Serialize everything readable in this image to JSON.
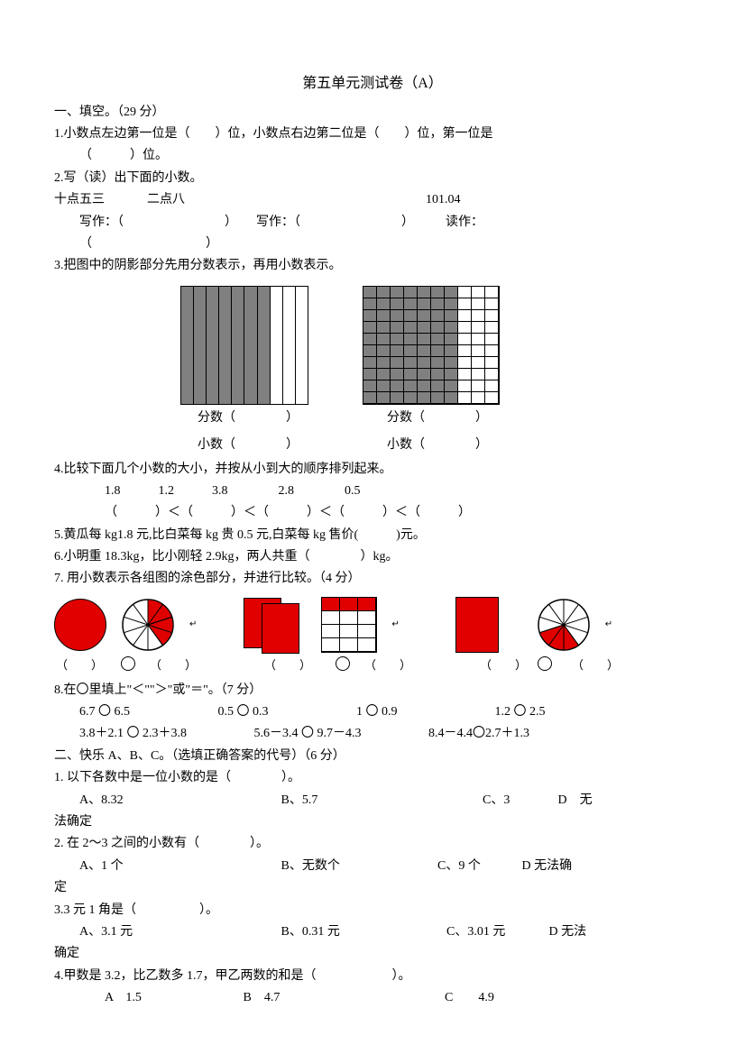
{
  "title": "第五单元测试卷（A）",
  "s1": {
    "heading": "一、填空。（29 分）",
    "q1": "1.小数点左边第一位是（　　）位，小数点右边第二位是（　　）位，第一位是",
    "q1b": "（　　　）位。",
    "q2": "2.写（读）出下面的小数。",
    "q2row1a": "十点五三",
    "q2row1b": "二点八",
    "q2row1c": "101.04",
    "q2write": "写作：（　　　　　　　　）　　写作：（　　　　　　　　）　　　读作：",
    "q2write2": "（　　　　　　　　　）",
    "q3": "3.把图中的阴影部分先用分数表示，再用小数表示。",
    "q3_tenths_shaded": 7,
    "q3_hundredths_shaded": 70,
    "q3_label_fs": "分数（　　　　）",
    "q3_label_xs": "小数（　　　　）",
    "q4": "4.比较下面几个小数的大小，并按从小到大的顺序排列起来。",
    "q4nums": "1.8　　　1.2　　　3.8　　　　2.8　　　　0.5",
    "q4order": "（　　　）＜（　　　）＜（　　　）＜（　　　）＜（　　　）",
    "q5": "5.黄瓜每 kg1.8 元,比白菜每 kg 贵 0.5 元,白菜每 kg 售价(　　　)元。",
    "q6": "6.小明重 18.3kg，比小刚轻 2.9kg，两人共重（　　　　）kg。",
    "q7": "7. 用小数表示各组图的涂色部分，并进行比较。（4 分）",
    "q7labels": {
      "a1": "（　　）",
      "a2": "（　　）",
      "b1": "（　　）",
      "b2": "（　　）",
      "c1": "（　　）",
      "c2": "（　　）"
    },
    "arrow": "↵",
    "q8": "8.在〇里填上\"＜\"\"＞\"或\"＝\"。（7 分）",
    "q8r1a": "6.7 〇 6.5",
    "q8r1b": "0.5 〇 0.3",
    "q8r1c": "1 〇 0.9",
    "q8r1d": "1.2 〇 2.5",
    "q8r2a": "3.8＋2.1 〇 2.3＋3.8",
    "q8r2b": "5.6－3.4 〇 9.7－4.3",
    "q8r2c": "8.4－4.4〇2.7＋1.3"
  },
  "s2": {
    "heading": "二、快乐 A、B、C。（选填正确答案的代号）（6 分）",
    "q1": "1. 以下各数中是一位小数的是（　　　　）。",
    "q1a": "A、8.32",
    "q1b": "B、5.7",
    "q1c": "C、3",
    "q1d": "D　无",
    "q1d2": "法确定",
    "q2": "2. 在 2～3 之间的小数有（　　　　）。",
    "q2a": "A、1 个",
    "q2b": "B、无数个",
    "q2c": "C、9 个",
    "q2d": "D 无法确",
    "q2d2": "定",
    "q3": "3.3 元 1 角是（　　　　　）。",
    "q3a": "A、3.1 元",
    "q3b": "B、0.31 元",
    "q3c": "C、3.01 元",
    "q3d": "D 无法",
    "q3d2": "确定",
    "q4": "4.甲数是 3.2，比乙数多 1.7，甲乙两数的和是（　　　　　　）。",
    "q4a": "A　1.5",
    "q4b": "B　4.7",
    "q4c": "C　　4.9"
  },
  "colors": {
    "red": "#e00000",
    "grey": "#808080"
  }
}
